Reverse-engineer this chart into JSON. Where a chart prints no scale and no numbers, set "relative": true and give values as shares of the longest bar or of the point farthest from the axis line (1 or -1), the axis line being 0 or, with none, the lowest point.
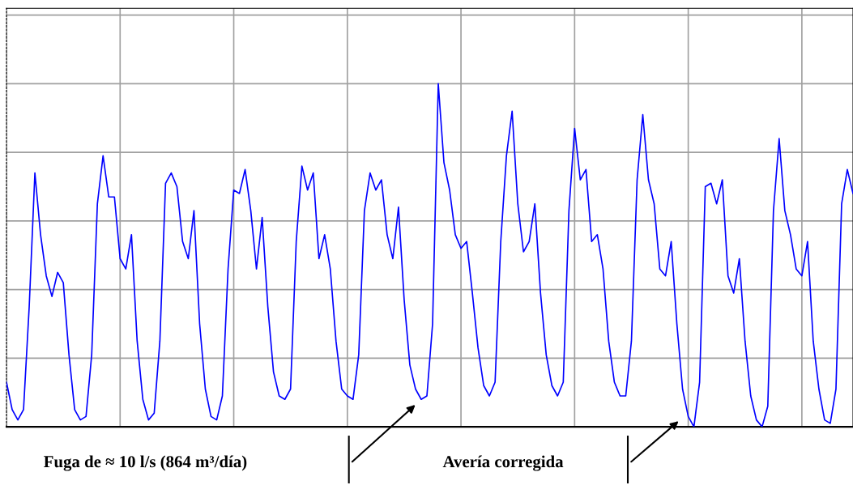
{
  "chart_data": {
    "type": "line",
    "relative": true,
    "grid": true,
    "tick_labels": false,
    "line_style": "solid",
    "marker": "none",
    "categories": [
      null,
      null,
      null,
      null,
      null,
      null,
      null,
      null,
      null,
      null,
      null,
      null,
      null,
      null,
      null,
      null,
      null,
      null,
      null,
      null,
      null,
      null,
      null,
      null,
      null,
      null,
      null,
      null,
      null,
      null,
      null,
      null,
      null,
      null,
      null,
      null,
      null,
      null,
      null,
      null,
      null,
      null,
      null,
      null,
      null,
      null,
      null,
      null,
      null,
      null,
      null,
      null,
      null,
      null,
      null,
      null,
      null,
      null,
      null,
      null,
      null,
      null,
      null,
      null,
      null,
      null,
      null,
      null,
      null,
      null,
      null,
      null,
      null,
      null,
      null,
      null,
      null,
      null,
      null,
      null,
      null,
      null,
      null,
      null,
      null,
      null,
      null,
      null,
      null,
      null,
      null,
      null,
      null,
      null,
      null,
      null,
      null,
      null,
      null,
      null,
      null,
      null,
      null,
      null,
      null,
      null,
      null,
      null,
      null,
      null,
      null,
      null,
      null,
      null,
      null,
      null,
      null,
      null,
      null,
      null,
      null,
      null,
      null,
      null,
      null,
      null,
      null,
      null,
      null,
      null,
      null,
      null,
      null,
      null,
      null,
      null,
      null,
      null,
      null,
      null,
      null,
      null,
      null,
      null,
      null,
      null,
      null,
      null,
      null,
      null
    ],
    "series": [
      {
        "color": "#0000ff",
        "values": [
          0.13,
          0.05,
          0.02,
          0.05,
          0.35,
          0.74,
          0.56,
          0.44,
          0.38,
          0.45,
          0.42,
          0.21,
          0.05,
          0.02,
          0.03,
          0.21,
          0.65,
          0.79,
          0.67,
          0.67,
          0.49,
          0.46,
          0.56,
          0.25,
          0.08,
          0.02,
          0.04,
          0.25,
          0.71,
          0.74,
          0.7,
          0.54,
          0.49,
          0.63,
          0.3,
          0.11,
          0.03,
          0.02,
          0.09,
          0.46,
          0.69,
          0.68,
          0.75,
          0.63,
          0.46,
          0.61,
          0.35,
          0.16,
          0.09,
          0.08,
          0.11,
          0.54,
          0.76,
          0.69,
          0.74,
          0.49,
          0.56,
          0.46,
          0.25,
          0.11,
          0.09,
          0.08,
          0.21,
          0.63,
          0.74,
          0.69,
          0.72,
          0.56,
          0.49,
          0.64,
          0.37,
          0.18,
          0.11,
          0.08,
          0.09,
          0.3,
          1.0,
          0.77,
          0.69,
          0.56,
          0.52,
          0.54,
          0.39,
          0.23,
          0.12,
          0.09,
          0.13,
          0.54,
          0.79,
          0.92,
          0.65,
          0.51,
          0.54,
          0.65,
          0.39,
          0.21,
          0.12,
          0.09,
          0.13,
          0.63,
          0.87,
          0.72,
          0.75,
          0.54,
          0.56,
          0.46,
          0.25,
          0.13,
          0.09,
          0.09,
          0.25,
          0.72,
          0.91,
          0.72,
          0.65,
          0.46,
          0.44,
          0.54,
          0.3,
          0.11,
          0.03,
          0.0,
          0.13,
          0.7,
          0.71,
          0.65,
          0.72,
          0.44,
          0.39,
          0.49,
          0.25,
          0.09,
          0.02,
          0.0,
          0.06,
          0.63,
          0.84,
          0.63,
          0.56,
          0.46,
          0.44,
          0.54,
          0.25,
          0.11,
          0.02,
          0.01,
          0.11,
          0.65,
          0.75,
          0.68
        ]
      }
    ],
    "annotations": [
      "Fuga de ≈ 10 l/s (864 m³/día)",
      "Avería corregida"
    ]
  }
}
